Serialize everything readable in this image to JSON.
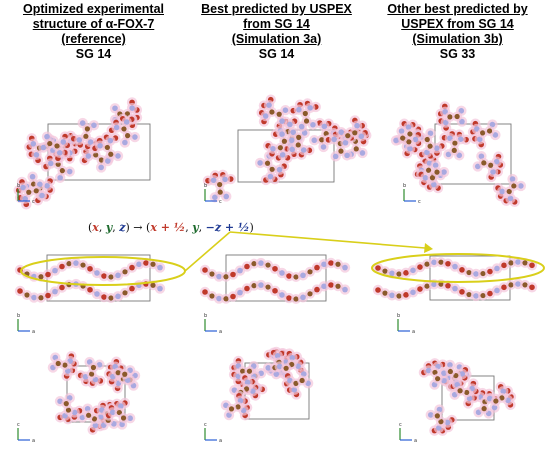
{
  "columns": [
    {
      "title_lines": [
        "Optimized experimental",
        "structure of α-FOX-7",
        "(reference)"
      ],
      "space_group": "SG 14"
    },
    {
      "title_lines": [
        "Best predicted by USPEX",
        "from SG 14",
        "(Simulation 3a)"
      ],
      "space_group": "SG 14"
    },
    {
      "title_lines": [
        "Other best predicted by",
        "USPEX from SG 14",
        "(Simulation 3b)"
      ],
      "space_group": "SG 33"
    }
  ],
  "symmetry_operation": {
    "lhs": [
      "x",
      "y",
      "z"
    ],
    "rhs": [
      "x + ½",
      "y",
      "−z + ½"
    ],
    "colors": {
      "x": "#c0392b",
      "y": "#1e6b2e",
      "z": "#1f3a93"
    }
  },
  "axis_labels": {
    "row1": [
      "b",
      "c"
    ],
    "row2": [
      "b",
      "a"
    ],
    "row3": [
      "c",
      "a"
    ]
  },
  "colors": {
    "carbon": "#8b5a2b",
    "nitrogen": "#a9a9e0",
    "oxygen": "#c0392b",
    "hydrogen_glow": "#f4c6dc",
    "highlight": "#d9cf1a",
    "cell": "#777777"
  }
}
